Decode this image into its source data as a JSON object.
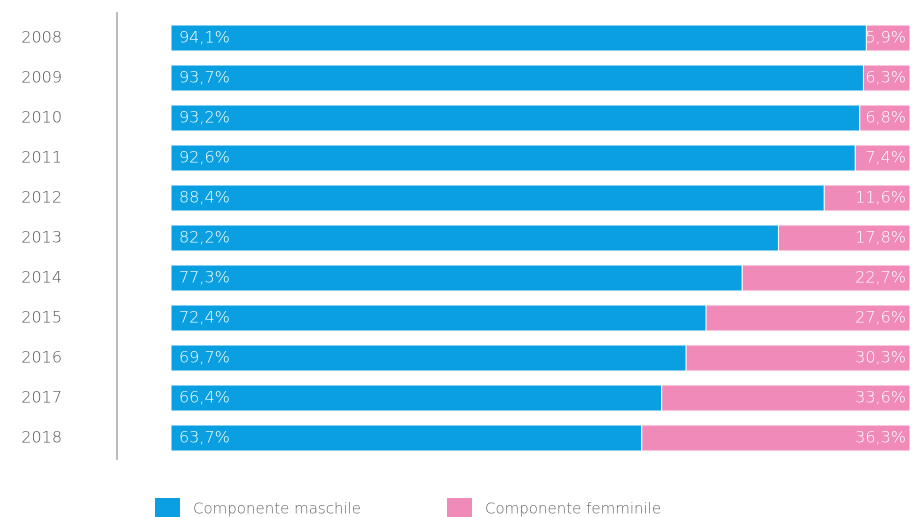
{
  "chart_data": {
    "type": "bar",
    "orientation": "horizontal",
    "stacked": true,
    "categories": [
      "2008",
      "2009",
      "2010",
      "2011",
      "2012",
      "2013",
      "2014",
      "2015",
      "2016",
      "2017",
      "2018"
    ],
    "series": [
      {
        "name": "Componente maschile",
        "color": "#0a9fe1",
        "values": [
          94.1,
          93.7,
          93.2,
          92.6,
          88.4,
          82.2,
          77.3,
          72.4,
          69.7,
          66.4,
          63.7
        ],
        "value_labels": [
          "94,1%",
          "93,7%",
          "93,2%",
          "92,6%",
          "88,4%",
          "82,2%",
          "77,3%",
          "72,4%",
          "69,7%",
          "66,4%",
          "63,7%"
        ]
      },
      {
        "name": "Componente femminile",
        "color": "#f08bb9",
        "values": [
          5.9,
          6.3,
          6.8,
          7.4,
          11.6,
          17.8,
          22.7,
          27.6,
          30.3,
          33.6,
          36.3
        ],
        "value_labels": [
          "5,9%",
          "6,3%",
          "6,8%",
          "7,4%",
          "11,6%",
          "17,8%",
          "22,7%",
          "27,6%",
          "30,3%",
          "33,6%",
          "36,3%"
        ]
      }
    ]
  }
}
